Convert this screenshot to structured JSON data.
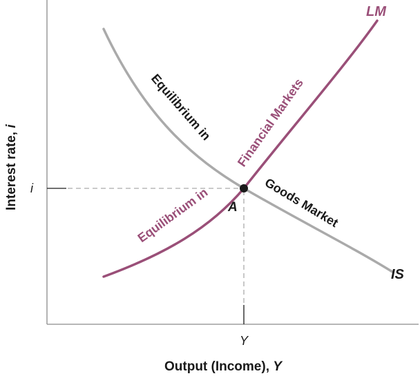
{
  "axes": {
    "x_title_main": "Output (Income), ",
    "x_title_var": "Y",
    "y_title_main": "Interest rate, ",
    "y_title_var": "i",
    "x_tick": "Y",
    "y_tick": "i"
  },
  "curves": {
    "is": {
      "name": "IS",
      "text_part1": "Equilibrium in",
      "text_part2": "Goods Market",
      "color": "#aaaaaa"
    },
    "lm": {
      "name": "LM",
      "text_part1": "Equilibrium in",
      "text_part2": "Financial Markets",
      "color": "#9a4f78"
    }
  },
  "equilibrium": {
    "label": "A"
  },
  "colors": {
    "axis": "#8a8a8a",
    "dashed": "#aaaaaa",
    "point": "#1a1a1a",
    "is_text": "#1a1a1a"
  }
}
